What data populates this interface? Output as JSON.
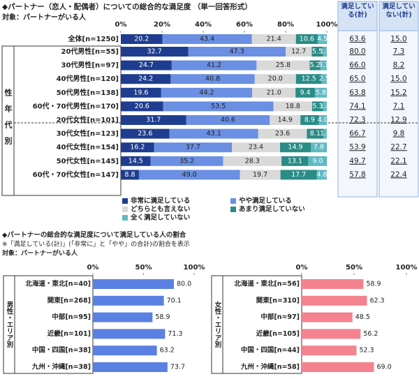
{
  "chart_data": [
    {
      "type": "stacked_bar",
      "title": "◆パートナー（恋人・配偶者）についての総合的な満足度 （単一回答形式）",
      "subtitle": "対象：パートナーがいる人",
      "group_label": "性年代別",
      "categories": [
        "全体[n=1250]",
        "20代男性[n=55]",
        "30代男性[n=97]",
        "40代男性[n=120]",
        "50代男性[n=138]",
        "60代・70代男性[n=170]",
        "20代女性[n=101]",
        "30代女性[n=123]",
        "40代女性[n=154]",
        "50代女性[n=145]",
        "60代・70代女性[n=147]"
      ],
      "xlim": [
        0,
        100
      ],
      "xticks": [
        {
          "value": 0,
          "label": "0%"
        },
        {
          "value": 20,
          "label": "20%"
        },
        {
          "value": 40,
          "label": "40%"
        },
        {
          "value": 60,
          "label": "60%"
        },
        {
          "value": 80,
          "label": "80%"
        },
        {
          "value": 100,
          "label": "100%"
        }
      ],
      "grid": false,
      "series": [
        {
          "name": "非常に満足している",
          "color": "#1f3d8f",
          "values": [
            20.2,
            32.7,
            24.7,
            24.2,
            19.6,
            20.6,
            31.7,
            23.6,
            16.2,
            14.5,
            8.8
          ]
        },
        {
          "name": "やや満足している",
          "color": "#6a8fe3",
          "values": [
            43.4,
            47.3,
            41.2,
            40.8,
            44.2,
            53.5,
            40.6,
            43.1,
            37.7,
            35.2,
            49.0
          ],
          "value_labels": [
            "43.4",
            "47.3",
            "41.2",
            "40.8",
            "44.2",
            "53.5",
            "40.6",
            "43.1",
            "37.7",
            "35.2",
            "49.0"
          ]
        },
        {
          "name": "どちらとも言えない",
          "color": "#d9d9d9",
          "values": [
            21.4,
            12.7,
            25.8,
            20.0,
            21.0,
            18.8,
            14.9,
            23.6,
            23.4,
            28.3,
            19.7
          ],
          "value_labels": [
            "21.4",
            "12.7",
            "25.8",
            "20.0",
            "21.0",
            "18.8",
            "14.9",
            "23.6",
            "23.4",
            "28.3",
            "19.7"
          ]
        },
        {
          "name": "あまり満足していない",
          "color": "#2a8c86",
          "values": [
            10.6,
            5.5,
            5.2,
            12.5,
            9.4,
            5.3,
            8.9,
            8.1,
            14.9,
            13.1,
            17.7
          ]
        },
        {
          "name": "全く満足していない",
          "color": "#5fb9c4",
          "values": [
            4.5,
            1.8,
            3.1,
            2.5,
            5.8,
            1.8,
            4.0,
            1.6,
            7.8,
            9.0,
            4.8
          ],
          "value_labels": [
            "4.5",
            "1.8",
            "3.1",
            "2.5",
            "5.8",
            "1.8",
            "4.0",
            "1.6",
            "7.8",
            "9.0",
            "4.8"
          ]
        }
      ],
      "summary": [
        {
          "name": "満足している(計)",
          "values": [
            63.6,
            80.0,
            66.0,
            65.0,
            63.8,
            74.1,
            72.3,
            66.7,
            53.9,
            49.7,
            57.8
          ],
          "value_labels": [
            "63.6",
            "80.0",
            "66.0",
            "65.0",
            "63.8",
            "74.1",
            "72.3",
            "66.7",
            "53.9",
            "49.7",
            "57.8"
          ]
        },
        {
          "name": "満足していない(計)",
          "values": [
            15.0,
            7.3,
            8.2,
            15.0,
            15.2,
            7.1,
            12.9,
            9.8,
            22.7,
            22.1,
            22.4
          ],
          "value_labels": [
            "15.0",
            "7.3",
            "8.2",
            "15.0",
            "15.2",
            "7.1",
            "12.9",
            "9.8",
            "22.7",
            "22.1",
            "22.4"
          ]
        }
      ]
    },
    {
      "type": "bar",
      "group_label": "男性・エリア別",
      "color": "#5b80e3",
      "categories": [
        "北海道・東北[n=40]",
        "関東[n=268]",
        "中部[n=95]",
        "近畿[n=101]",
        "中国・四国[n=38]",
        "九州・沖縄[n=38]"
      ],
      "values": [
        80.0,
        70.1,
        58.9,
        71.3,
        63.2,
        73.7
      ],
      "value_labels": [
        "80.0",
        "70.1",
        "58.9",
        "71.3",
        "63.2",
        "73.7"
      ],
      "xlim": [
        0,
        100
      ],
      "xticks": [
        {
          "value": 0,
          "label": "0%"
        },
        {
          "value": 50,
          "label": "50%"
        },
        {
          "value": 100,
          "label": "100%"
        }
      ]
    },
    {
      "type": "bar",
      "group_label": "女性・エリア別",
      "color": "#f4828f",
      "categories": [
        "北海道・東北[n=56]",
        "関東[n=310]",
        "中部[n=97]",
        "近畿[n=105]",
        "中国・四国[n=44]",
        "九州・沖縄[n=58]"
      ],
      "values": [
        58.9,
        62.3,
        48.5,
        56.2,
        52.3,
        69.0
      ],
      "value_labels": [
        "58.9",
        "62.3",
        "48.5",
        "56.2",
        "52.3",
        "69.0"
      ],
      "xlim": [
        0,
        100
      ],
      "xticks": [
        {
          "value": 0,
          "label": "0%"
        },
        {
          "value": 50,
          "label": "50%"
        },
        {
          "value": 100,
          "label": "100%"
        }
      ]
    }
  ],
  "section_2": {
    "title": "◆パートナーの総合的な満足度について満足している人の割合",
    "note": "※「満足している(計)」(「非常に」と「やや」の合計)の割合を表示",
    "subtitle": "対象：パートナーがいる人"
  }
}
